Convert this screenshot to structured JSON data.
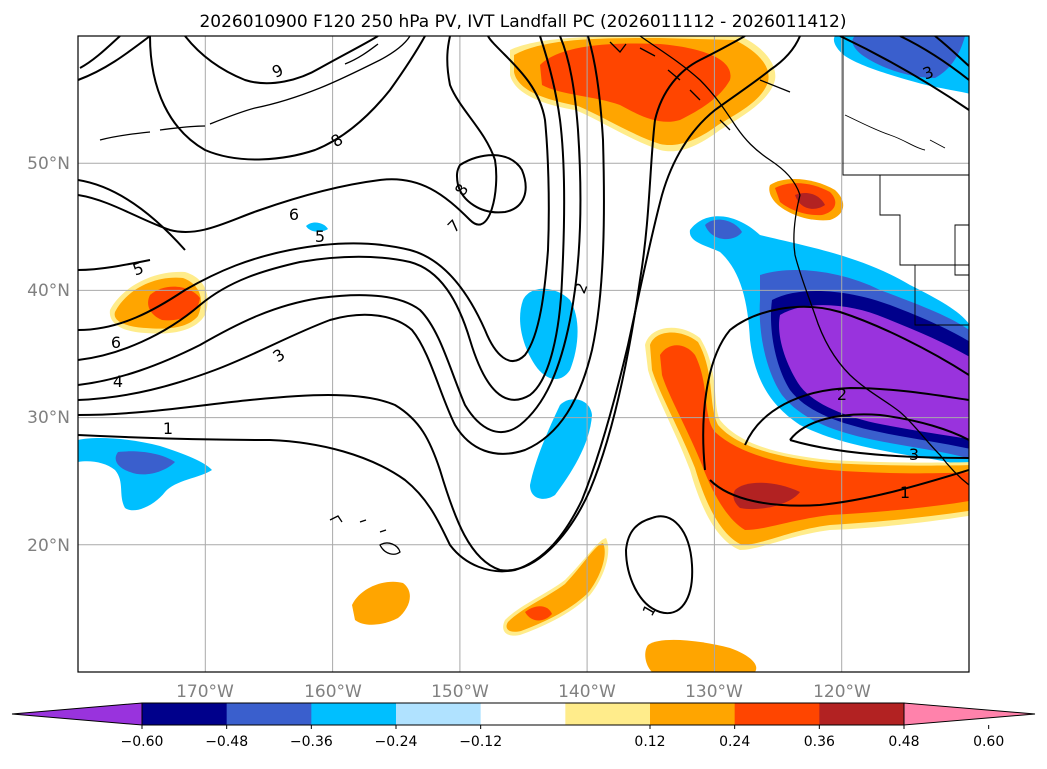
{
  "title": "2026010900 F120 250 hPa PV, IVT Landfall PC (2026011112 - 2026011412)",
  "map": {
    "lon_range": [
      -180,
      -110
    ],
    "lat_range": [
      10,
      60
    ],
    "lat_labels": [
      {
        "lat": 50,
        "label": "50°N"
      },
      {
        "lat": 40,
        "label": "40°N"
      },
      {
        "lat": 30,
        "label": "30°N"
      },
      {
        "lat": 20,
        "label": "20°N"
      }
    ],
    "lon_labels": [
      {
        "lon": -170,
        "label": "170°W"
      },
      {
        "lon": -160,
        "label": "160°W"
      },
      {
        "lon": -150,
        "label": "150°W"
      },
      {
        "lon": -140,
        "label": "140°W"
      },
      {
        "lon": -130,
        "label": "130°W"
      },
      {
        "lon": -120,
        "label": "120°W"
      }
    ],
    "grid": true
  },
  "pv_contour_labels": [
    "9",
    "8",
    "8",
    "7",
    "6",
    "6",
    "5",
    "5",
    "4",
    "3",
    "3",
    "2",
    "2",
    "1",
    "1",
    "1",
    "3"
  ],
  "colorbar": {
    "ticks": [
      "−0.60",
      "−0.48",
      "−0.36",
      "−0.24",
      "−0.12",
      "0.12",
      "0.24",
      "0.36",
      "0.48",
      "0.60"
    ],
    "colors": [
      "#9933dd",
      "#00008b",
      "#3a5fcd",
      "#00bfff",
      "#b0e2ff",
      "#ffffff",
      "#ffec8b",
      "#ffa500",
      "#ff4500",
      "#b22222",
      "#ff82ab"
    ],
    "extend": "both"
  }
}
